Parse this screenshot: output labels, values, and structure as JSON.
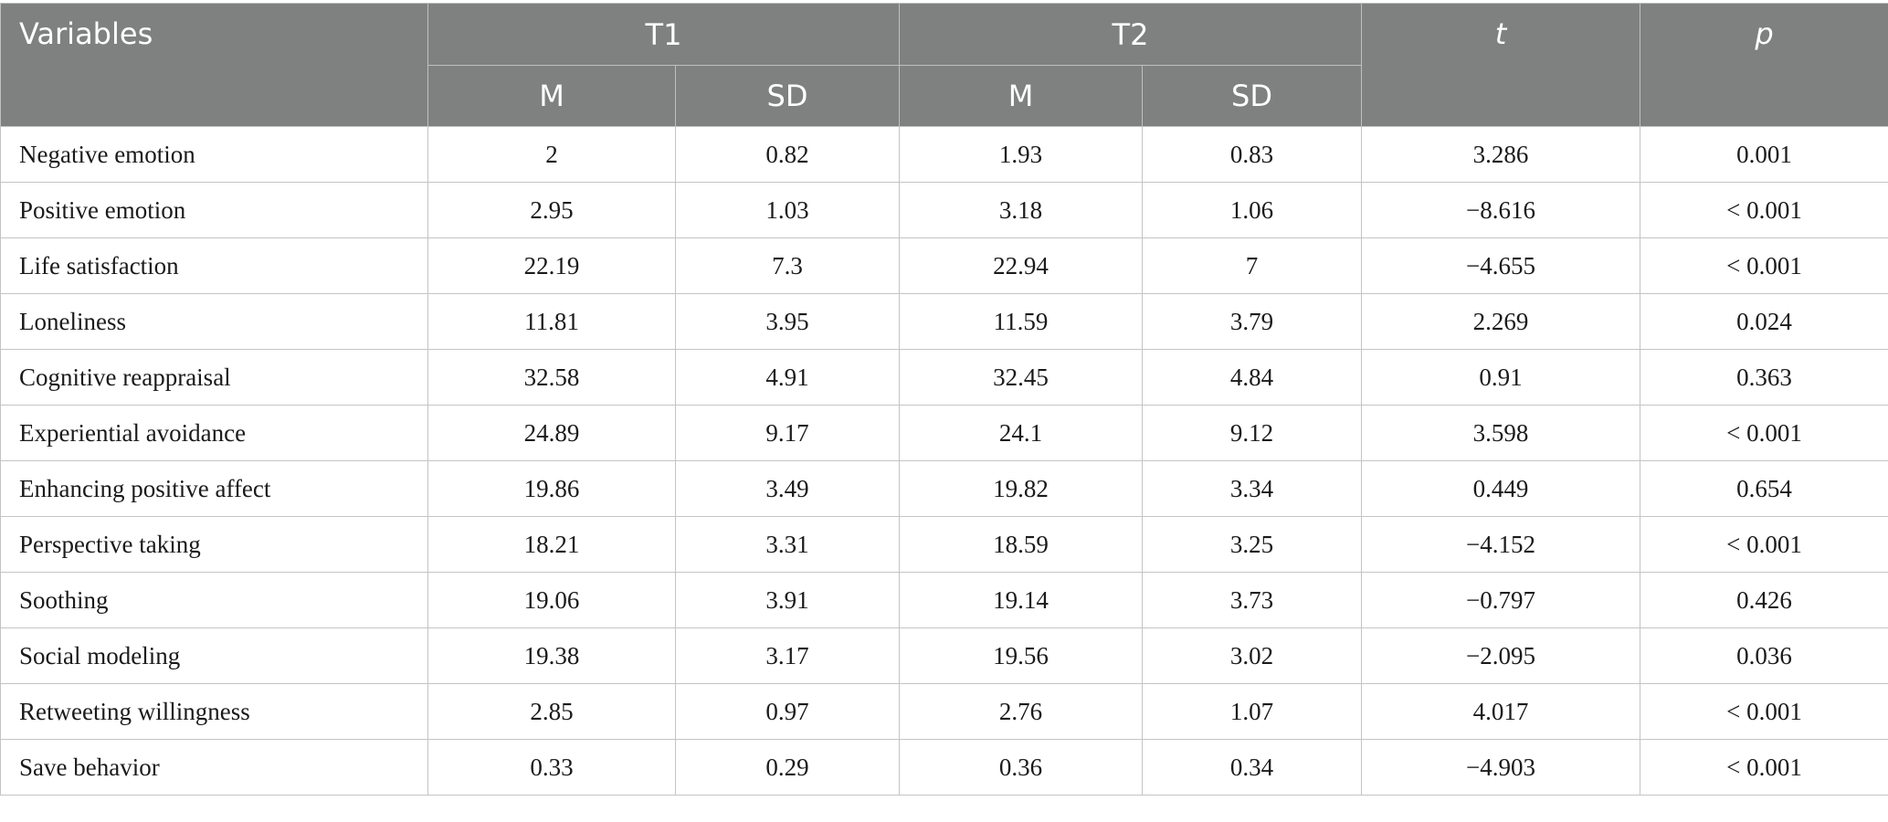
{
  "table": {
    "header": {
      "variables": "Variables",
      "group_t1": "T1",
      "group_t2": "T2",
      "t": "t",
      "p": "p",
      "m": "M",
      "sd": "SD"
    },
    "rows": [
      {
        "variable": "Negative emotion",
        "t1_m": "2",
        "t1_sd": "0.82",
        "t2_m": "1.93",
        "t2_sd": "0.83",
        "t": "3.286",
        "p": "0.001"
      },
      {
        "variable": "Positive emotion",
        "t1_m": "2.95",
        "t1_sd": "1.03",
        "t2_m": "3.18",
        "t2_sd": "1.06",
        "t": "−8.616",
        "p": "< 0.001"
      },
      {
        "variable": "Life satisfaction",
        "t1_m": "22.19",
        "t1_sd": "7.3",
        "t2_m": "22.94",
        "t2_sd": "7",
        "t": "−4.655",
        "p": "< 0.001"
      },
      {
        "variable": "Loneliness",
        "t1_m": "11.81",
        "t1_sd": "3.95",
        "t2_m": "11.59",
        "t2_sd": "3.79",
        "t": "2.269",
        "p": "0.024"
      },
      {
        "variable": "Cognitive reappraisal",
        "t1_m": "32.58",
        "t1_sd": "4.91",
        "t2_m": "32.45",
        "t2_sd": "4.84",
        "t": "0.91",
        "p": "0.363"
      },
      {
        "variable": "Experiential avoidance",
        "t1_m": "24.89",
        "t1_sd": "9.17",
        "t2_m": "24.1",
        "t2_sd": "9.12",
        "t": "3.598",
        "p": "< 0.001"
      },
      {
        "variable": "Enhancing positive affect",
        "t1_m": "19.86",
        "t1_sd": "3.49",
        "t2_m": "19.82",
        "t2_sd": "3.34",
        "t": "0.449",
        "p": "0.654"
      },
      {
        "variable": "Perspective taking",
        "t1_m": "18.21",
        "t1_sd": "3.31",
        "t2_m": "18.59",
        "t2_sd": "3.25",
        "t": "−4.152",
        "p": "< 0.001"
      },
      {
        "variable": "Soothing",
        "t1_m": "19.06",
        "t1_sd": "3.91",
        "t2_m": "19.14",
        "t2_sd": "3.73",
        "t": "−0.797",
        "p": "0.426"
      },
      {
        "variable": "Social modeling",
        "t1_m": "19.38",
        "t1_sd": "3.17",
        "t2_m": "19.56",
        "t2_sd": "3.02",
        "t": "−2.095",
        "p": "0.036"
      },
      {
        "variable": "Retweeting willingness",
        "t1_m": "2.85",
        "t1_sd": "0.97",
        "t2_m": "2.76",
        "t2_sd": "1.07",
        "t": "4.017",
        "p": "< 0.001"
      },
      {
        "variable": "Save behavior",
        "t1_m": "0.33",
        "t1_sd": "0.29",
        "t2_m": "0.36",
        "t2_sd": "0.34",
        "t": "−4.903",
        "p": "< 0.001"
      }
    ]
  }
}
